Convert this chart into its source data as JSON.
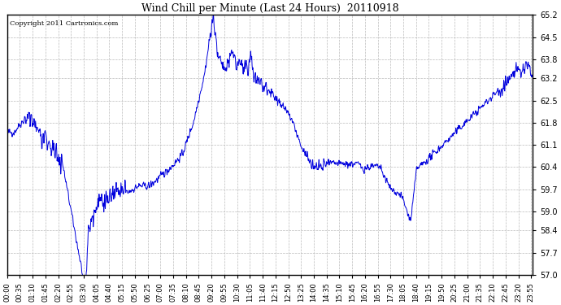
{
  "title": "Wind Chill per Minute (Last 24 Hours)  20110918",
  "copyright": "Copyright 2011 Cartronics.com",
  "line_color": "#0000dd",
  "bg_color": "#ffffff",
  "grid_color": "#bbbbbb",
  "ylim": [
    57.0,
    65.2
  ],
  "yticks": [
    57.0,
    57.7,
    58.4,
    59.0,
    59.7,
    60.4,
    61.1,
    61.8,
    62.5,
    63.2,
    63.8,
    64.5,
    65.2
  ],
  "figsize": [
    6.9,
    3.75
  ],
  "dpi": 100
}
